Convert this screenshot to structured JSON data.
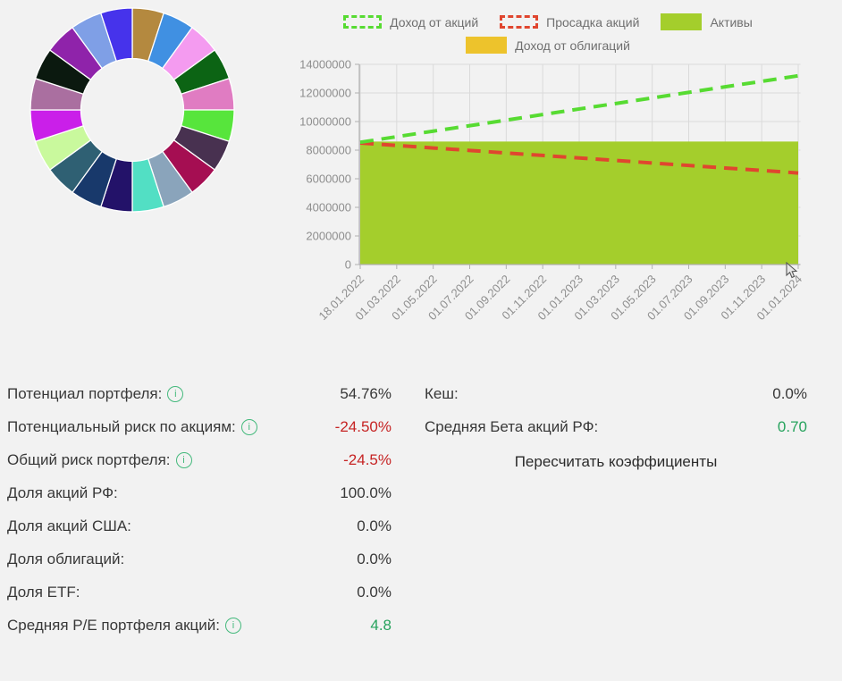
{
  "colors": {
    "background": "#f2f2f2",
    "text": "#383838",
    "value_red": "#c62424",
    "value_green": "#27a35d",
    "info_icon": "#44b97c",
    "grid": "#dadada",
    "axis": "#b0b0b0",
    "tick_text": "#8e8e8e"
  },
  "legend": {
    "items": [
      {
        "label": "Доход от акций",
        "swatch": "dashed",
        "color": "#57db32"
      },
      {
        "label": "Просадка акций",
        "swatch": "dashed",
        "color": "#e0462f"
      },
      {
        "label": "Активы",
        "swatch": "solid",
        "color": "#a4ce2c"
      },
      {
        "label": "Доход от облигаций",
        "swatch": "solid",
        "color": "#edc32c"
      }
    ]
  },
  "chart_data": [
    {
      "type": "pie",
      "style": "donut",
      "title": "",
      "slices": [
        {
          "value": 5,
          "color": "#b4893f"
        },
        {
          "value": 5,
          "color": "#4090e2"
        },
        {
          "value": 5,
          "color": "#f49bf0"
        },
        {
          "value": 5,
          "color": "#0c6414"
        },
        {
          "value": 5,
          "color": "#e07cc2"
        },
        {
          "value": 5,
          "color": "#57e53c"
        },
        {
          "value": 5,
          "color": "#483150"
        },
        {
          "value": 5,
          "color": "#a50e52"
        },
        {
          "value": 5,
          "color": "#8aa4bb"
        },
        {
          "value": 5,
          "color": "#52dfc4"
        },
        {
          "value": 5,
          "color": "#231269"
        },
        {
          "value": 5,
          "color": "#18396b"
        },
        {
          "value": 5,
          "color": "#2f6073"
        },
        {
          "value": 5,
          "color": "#c9f99d"
        },
        {
          "value": 5,
          "color": "#ca1fe9"
        },
        {
          "value": 5,
          "color": "#aa6fa0"
        },
        {
          "value": 5,
          "color": "#0b190f"
        },
        {
          "value": 5,
          "color": "#8f23aa"
        },
        {
          "value": 5,
          "color": "#7f9fe6"
        },
        {
          "value": 5,
          "color": "#4633eb"
        }
      ]
    },
    {
      "type": "area",
      "title": "",
      "xlabel": "",
      "ylabel": "",
      "ylim": [
        0,
        14000000
      ],
      "yticks": [
        0,
        2000000,
        4000000,
        6000000,
        8000000,
        10000000,
        12000000,
        14000000
      ],
      "grid": true,
      "legend_position": "top",
      "x": [
        "18.01.2022",
        "01.03.2022",
        "01.05.2022",
        "01.07.2022",
        "01.09.2022",
        "01.11.2022",
        "01.01.2023",
        "01.03.2023",
        "01.05.2023",
        "01.07.2023",
        "01.09.2023",
        "01.11.2023",
        "01.01.2024"
      ],
      "series": [
        {
          "name": "Доход от акций",
          "type": "line",
          "dashed": true,
          "color": "#57db32",
          "values": [
            8550000,
            8940000,
            9330000,
            9710000,
            10100000,
            10490000,
            10880000,
            11260000,
            11650000,
            12040000,
            12430000,
            12810000,
            13200000
          ]
        },
        {
          "name": "Просадка акций",
          "type": "line",
          "dashed": true,
          "color": "#e0462f",
          "values": [
            8500000,
            8330000,
            8150000,
            7980000,
            7800000,
            7630000,
            7450000,
            7280000,
            7100000,
            6930000,
            6750000,
            6580000,
            6400000
          ]
        },
        {
          "name": "Активы",
          "type": "area",
          "dashed": false,
          "color": "#a4ce2c",
          "values": [
            8600000,
            8600000,
            8600000,
            8600000,
            8600000,
            8600000,
            8600000,
            8600000,
            8600000,
            8600000,
            8600000,
            8600000,
            8600000
          ]
        },
        {
          "name": "Доход от облигаций",
          "type": "area",
          "dashed": false,
          "color": "#edc32c",
          "values": [
            0,
            0,
            0,
            0,
            0,
            0,
            0,
            0,
            0,
            0,
            0,
            0,
            0
          ]
        }
      ]
    }
  ],
  "stats_left": {
    "rows": [
      {
        "label": "Потенциал портфеля:",
        "info": true,
        "value": "54.76%",
        "value_color": "#383838"
      },
      {
        "label": "Потенциальный риск по акциям:",
        "info": true,
        "value": "-24.50%",
        "value_color": "#c62424"
      },
      {
        "label": "Общий риск портфеля:",
        "info": true,
        "value": "-24.5%",
        "value_color": "#c62424"
      },
      {
        "label": "Доля акций РФ:",
        "info": false,
        "value": "100.0%",
        "value_color": "#383838"
      },
      {
        "label": "Доля акций США:",
        "info": false,
        "value": "0.0%",
        "value_color": "#383838"
      },
      {
        "label": "Доля облигаций:",
        "info": false,
        "value": "0.0%",
        "value_color": "#383838"
      },
      {
        "label": "Доля ETF:",
        "info": false,
        "value": "0.0%",
        "value_color": "#383838"
      },
      {
        "label": "Средняя P/E портфеля акций:",
        "info": true,
        "value": "4.8",
        "value_color": "#27a35d"
      }
    ]
  },
  "stats_right": {
    "rows": [
      {
        "label": "Кеш:",
        "info": false,
        "value": "0.0%",
        "value_color": "#383838"
      },
      {
        "label": "Средняя Бета акций РФ:",
        "info": false,
        "value": "0.70",
        "value_color": "#27a35d"
      }
    ],
    "recalc_button_label": "Пересчитать коэффициенты"
  }
}
